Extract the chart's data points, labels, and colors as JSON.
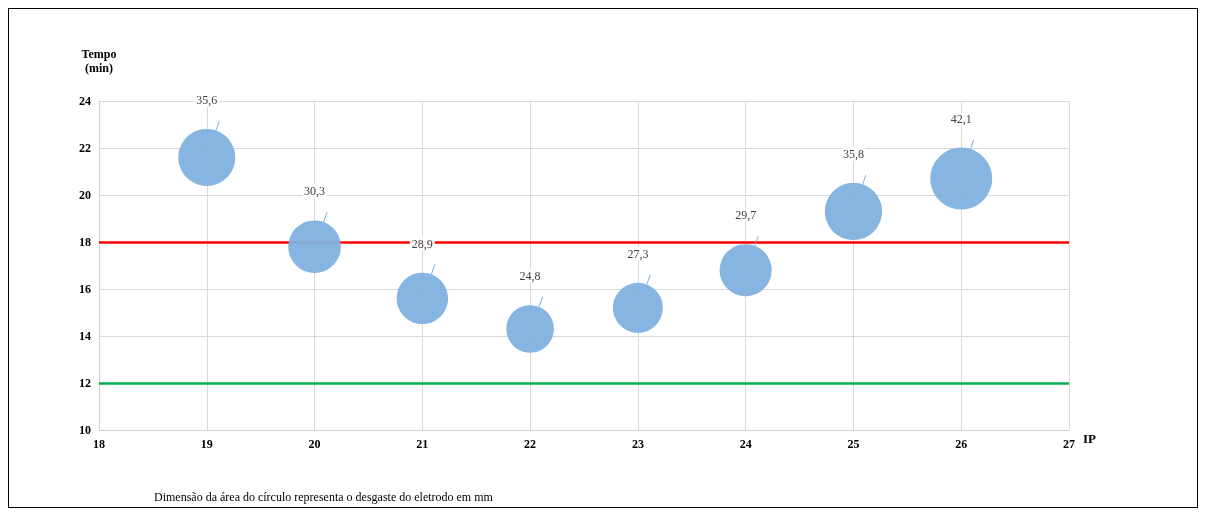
{
  "chart_data": {
    "type": "bubble",
    "xlabel": "IP",
    "ylabel": "Tempo\n(min)",
    "x": [
      19,
      20,
      21,
      22,
      23,
      24,
      25,
      26
    ],
    "values": [
      21.6,
      17.8,
      15.6,
      14.3,
      15.2,
      16.8,
      19.3,
      20.7
    ],
    "sizes": [
      35.6,
      30.3,
      28.9,
      24.8,
      27.3,
      29.7,
      35.8,
      42.1
    ],
    "value_labels": [
      "35,6",
      "30,3",
      "28,9",
      "24,8",
      "27,3",
      "29,7",
      "35,8",
      "42,1"
    ],
    "color": "#80b1e0",
    "xlim": [
      18,
      27
    ],
    "xticks": [
      18,
      19,
      20,
      21,
      22,
      23,
      24,
      25,
      26,
      27
    ],
    "ylim": [
      10,
      24
    ],
    "yticks": [
      10,
      12,
      14,
      16,
      18,
      20,
      22,
      24
    ],
    "grid": true,
    "ref_lines": [
      {
        "axis": "y",
        "value": 18,
        "color": "#ff0000"
      },
      {
        "axis": "y",
        "value": 12,
        "color": "#00b050"
      }
    ],
    "annotations": [
      "Dimensão da área do círculo representa o desgaste do eletrodo em mm"
    ]
  }
}
